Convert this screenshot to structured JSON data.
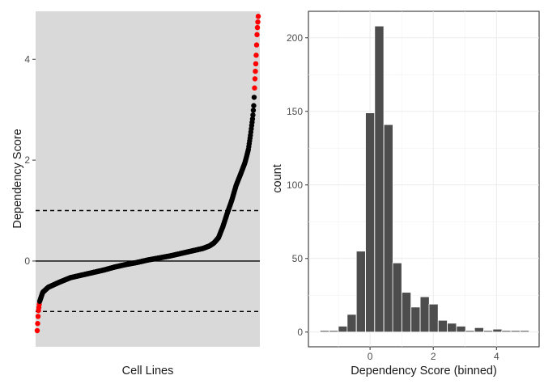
{
  "chart_data": [
    {
      "type": "scatter",
      "xlabel": "Cell Lines",
      "ylabel": "Dependency Score",
      "ylim": [
        -1.7,
        4.95
      ],
      "yticks": [
        0,
        2,
        4
      ],
      "reference_lines": [
        {
          "y": 0,
          "style": "solid"
        },
        {
          "y": 1,
          "style": "dashed"
        },
        {
          "y": -1,
          "style": "dashed"
        }
      ],
      "grid": false,
      "background": "#d9d9d9",
      "n_points": 540,
      "colors": {
        "normal": "#000000",
        "outlier": "#ff0000"
      },
      "sorted_curve": [
        {
          "rank": 0.0,
          "score": -1.38
        },
        {
          "rank": 0.005,
          "score": -1.0
        },
        {
          "rank": 0.011,
          "score": -0.8
        },
        {
          "rank": 0.025,
          "score": -0.62
        },
        {
          "rank": 0.05,
          "score": -0.52
        },
        {
          "rank": 0.1,
          "score": -0.42
        },
        {
          "rank": 0.15,
          "score": -0.33
        },
        {
          "rank": 0.2,
          "score": -0.28
        },
        {
          "rank": 0.25,
          "score": -0.23
        },
        {
          "rank": 0.3,
          "score": -0.18
        },
        {
          "rank": 0.35,
          "score": -0.12
        },
        {
          "rank": 0.4,
          "score": -0.07
        },
        {
          "rank": 0.45,
          "score": -0.03
        },
        {
          "rank": 0.5,
          "score": 0.02
        },
        {
          "rank": 0.55,
          "score": 0.06
        },
        {
          "rank": 0.6,
          "score": 0.1
        },
        {
          "rank": 0.65,
          "score": 0.15
        },
        {
          "rank": 0.7,
          "score": 0.2
        },
        {
          "rank": 0.75,
          "score": 0.25
        },
        {
          "rank": 0.78,
          "score": 0.3
        },
        {
          "rank": 0.8,
          "score": 0.36
        },
        {
          "rank": 0.82,
          "score": 0.46
        },
        {
          "rank": 0.84,
          "score": 0.68
        },
        {
          "rank": 0.86,
          "score": 0.95
        },
        {
          "rank": 0.88,
          "score": 1.2
        },
        {
          "rank": 0.9,
          "score": 1.5
        },
        {
          "rank": 0.92,
          "score": 1.72
        },
        {
          "rank": 0.94,
          "score": 1.95
        },
        {
          "rank": 0.955,
          "score": 2.2
        },
        {
          "rank": 0.965,
          "score": 2.5
        },
        {
          "rank": 0.975,
          "score": 2.85
        },
        {
          "rank": 0.98,
          "score": 3.1
        },
        {
          "rank": 0.985,
          "score": 3.6
        },
        {
          "rank": 0.99,
          "score": 4.0
        },
        {
          "rank": 0.995,
          "score": 4.55
        },
        {
          "rank": 1.0,
          "score": 4.85
        }
      ]
    },
    {
      "type": "bar",
      "xlabel": "Dependency Score (binned)",
      "ylabel": "count",
      "xlim": [
        -1.95,
        5.35
      ],
      "ylim": [
        -10,
        218
      ],
      "xticks": [
        0,
        2,
        4
      ],
      "yticks": [
        0,
        50,
        100,
        150,
        200
      ],
      "grid": true,
      "bar_color": "#4d4d4d",
      "bar_edge_color": "#ffffff",
      "bin_width": 0.2875,
      "bin_centers": [
        -1.44,
        -1.15,
        -0.86,
        -0.58,
        -0.29,
        0.0,
        0.29,
        0.58,
        0.86,
        1.15,
        1.44,
        1.73,
        2.01,
        2.3,
        2.59,
        2.88,
        3.16,
        3.45,
        3.74,
        4.03,
        4.31,
        4.6,
        4.89
      ],
      "values": [
        1,
        1,
        4,
        12,
        55,
        149,
        208,
        141,
        47,
        27,
        17,
        24,
        19,
        8,
        6,
        4,
        1,
        3,
        1,
        2,
        1,
        1,
        1
      ]
    }
  ]
}
